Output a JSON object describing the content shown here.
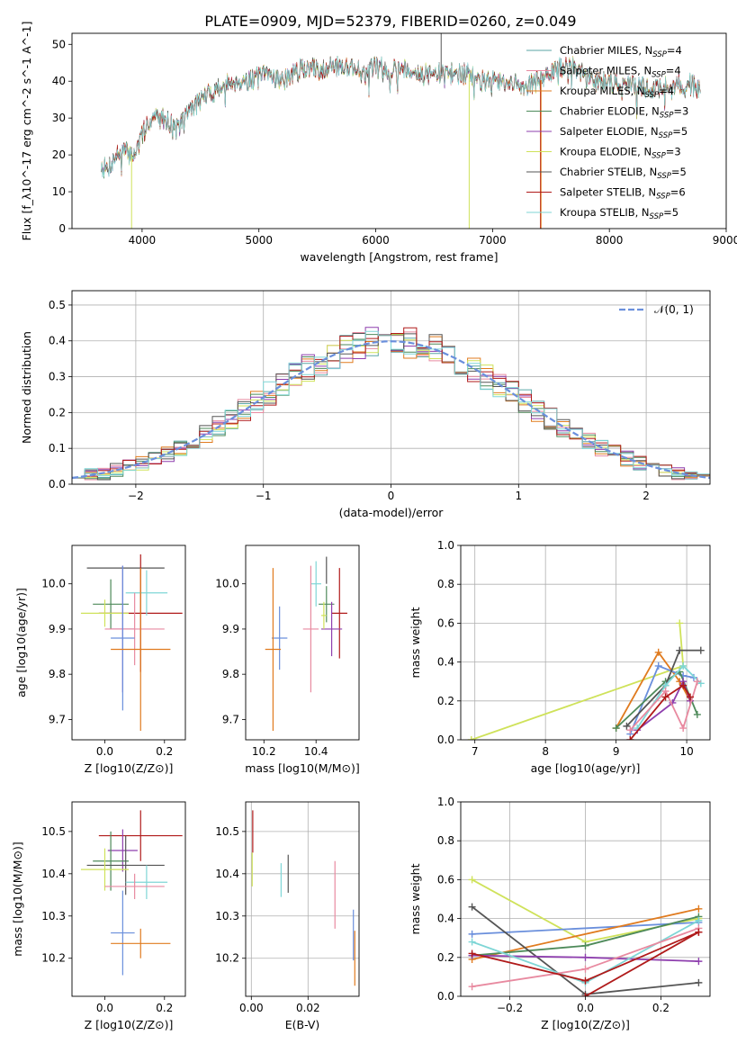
{
  "figure_title": "PLATE=0909, MJD=52379, FIBERID=0260, z=0.049",
  "colors": {
    "Chabrier MILES": "#5aa6a6",
    "Salpeter MILES": "#e88aa0",
    "Kroupa MILES": "#e07b1f",
    "Chabrier ELODIE": "#4e8a5a",
    "Salpeter ELODIE": "#8e3fae",
    "Kroupa ELODIE": "#cfe25a",
    "Chabrier STELIB": "#555555",
    "Salpeter STELIB": "#b01a1a",
    "Kroupa STELIB": "#7fd6d6",
    "blue": "#6a8fdc"
  },
  "chart_data": [
    {
      "id": "spectrum",
      "type": "line",
      "xlabel": "wavelength [Angstrom, rest frame]",
      "ylabel": "Flux [f_λ10^-17 erg cm^-2 s^-1 A^-1]",
      "xlim": [
        3400,
        9000
      ],
      "ylim": [
        0,
        53
      ],
      "xticks": [
        4000,
        5000,
        6000,
        7000,
        8000,
        9000
      ],
      "yticks": [
        0,
        10,
        20,
        30,
        40,
        50
      ],
      "legend_position": "upper-right",
      "legend": [
        {
          "model": "Chabrier MILES",
          "text": "Chabrier MILES, N",
          "sub": "SSP",
          "eq": "=4"
        },
        {
          "model": "Salpeter MILES",
          "text": "Salpeter MILES, N",
          "sub": "SSP",
          "eq": "=4"
        },
        {
          "model": "Kroupa MILES",
          "text": "Kroupa MILES, N",
          "sub": "SSP",
          "eq": "=4"
        },
        {
          "model": "Chabrier ELODIE",
          "text": "Chabrier ELODIE, N",
          "sub": "SSP",
          "eq": "=3"
        },
        {
          "model": "Salpeter ELODIE",
          "text": "Salpeter ELODIE, N",
          "sub": "SSP",
          "eq": "=5"
        },
        {
          "model": "Kroupa ELODIE",
          "text": "Kroupa ELODIE, N",
          "sub": "SSP",
          "eq": "=3"
        },
        {
          "model": "Chabrier STELIB",
          "text": "Chabrier STELIB, N",
          "sub": "SSP",
          "eq": "=5"
        },
        {
          "model": "Salpeter STELIB",
          "text": "Salpeter STELIB, N",
          "sub": "SSP",
          "eq": "=6"
        },
        {
          "model": "Kroupa STELIB",
          "text": "Kroupa STELIB, N",
          "sub": "SSP",
          "eq": "=5"
        }
      ],
      "continuum": [
        [
          3650,
          17
        ],
        [
          3700,
          16
        ],
        [
          3780,
          20
        ],
        [
          3850,
          21
        ],
        [
          3900,
          20
        ],
        [
          3950,
          21
        ],
        [
          4000,
          25
        ],
        [
          4050,
          29
        ],
        [
          4100,
          30
        ],
        [
          4200,
          30
        ],
        [
          4300,
          27
        ],
        [
          4400,
          32
        ],
        [
          4500,
          35
        ],
        [
          4600,
          37
        ],
        [
          4700,
          39
        ],
        [
          4800,
          40
        ],
        [
          4900,
          40
        ],
        [
          5000,
          41
        ],
        [
          5100,
          42
        ],
        [
          5200,
          40
        ],
        [
          5300,
          42
        ],
        [
          5400,
          44
        ],
        [
          5500,
          43
        ],
        [
          5600,
          44
        ],
        [
          5700,
          44
        ],
        [
          5800,
          44
        ],
        [
          5900,
          42
        ],
        [
          6000,
          44
        ],
        [
          6100,
          43
        ],
        [
          6200,
          44
        ],
        [
          6300,
          43
        ],
        [
          6400,
          42
        ],
        [
          6500,
          42
        ],
        [
          6600,
          42
        ],
        [
          6700,
          42
        ],
        [
          6800,
          42
        ],
        [
          6900,
          40
        ],
        [
          7000,
          40
        ],
        [
          7100,
          39
        ],
        [
          7200,
          39
        ],
        [
          7300,
          39
        ],
        [
          7400,
          40
        ],
        [
          7500,
          42
        ],
        [
          7600,
          44
        ],
        [
          7700,
          44
        ],
        [
          7800,
          41
        ],
        [
          7900,
          40
        ],
        [
          8000,
          40
        ],
        [
          8100,
          39
        ],
        [
          8200,
          39
        ],
        [
          8300,
          38
        ],
        [
          8400,
          38
        ],
        [
          8500,
          39
        ],
        [
          8600,
          39
        ],
        [
          8700,
          39
        ],
        [
          8780,
          38
        ]
      ],
      "noise_amplitude": 2.5,
      "spikes": [
        {
          "model": "Kroupa ELODIE",
          "x": 3910,
          "y": 0
        },
        {
          "model": "Kroupa ELODIE",
          "x": 6800,
          "y": 0
        },
        {
          "model": "Salpeter STELIB",
          "x": 7410,
          "y": 0
        },
        {
          "model": "Kroupa MILES",
          "x": 7415,
          "y": 0
        },
        {
          "model": "Chabrier STELIB",
          "x": 6560,
          "y": 53
        }
      ]
    },
    {
      "id": "residuals",
      "type": "step",
      "xlabel": "(data-model)/error",
      "ylabel": "Normed distribution",
      "xlim": [
        -2.5,
        2.5
      ],
      "ylim": [
        0,
        0.54
      ],
      "xticks": [
        -2,
        -1,
        0,
        1,
        2
      ],
      "yticks": [
        0.0,
        0.1,
        0.2,
        0.3,
        0.4,
        0.5
      ],
      "grid": true,
      "bin_width": 0.1,
      "legend_position": "upper-right",
      "gaussian_label": "𝒩(0, 1)",
      "gaussian": {
        "mu": 0,
        "sigma": 1
      }
    },
    {
      "id": "age-vs-Z",
      "type": "errorbar",
      "xlabel": "Z [log10(Z/Z⊙)]",
      "ylabel": "age  [log10(age/yr)]",
      "xlim": [
        -0.11,
        0.27
      ],
      "ylim": [
        9.655,
        10.085
      ],
      "xticks": [
        0.0,
        0.2
      ],
      "yticks": [
        9.7,
        9.8,
        9.9,
        10.0
      ],
      "points": [
        {
          "model": "Chabrier STELIB",
          "x": 0.07,
          "xerr": 0.13,
          "y": 10.035,
          "yerr": 0
        },
        {
          "model": "Salpeter STELIB",
          "x": 0.12,
          "xerr": 0.14,
          "y": 9.935,
          "yerr": 0.13
        },
        {
          "model": "Kroupa STELIB",
          "x": 0.14,
          "xerr": 0.07,
          "y": 9.98,
          "yerr": 0.05
        },
        {
          "model": "Chabrier ELODIE",
          "x": 0.02,
          "xerr": 0.06,
          "y": 9.955,
          "yerr": 0.055
        },
        {
          "model": "Kroupa ELODIE",
          "x": 0.0,
          "xerr": 0.08,
          "y": 9.935,
          "yerr": 0.03
        },
        {
          "model": "Salpeter ELODIE",
          "x": 0.06,
          "xerr": 0.04,
          "y": 9.9,
          "yerr": 0.14
        },
        {
          "model": "Salpeter MILES",
          "x": 0.1,
          "xerr": 0.1,
          "y": 9.9,
          "yerr": 0.08
        },
        {
          "model": "blue",
          "x": 0.06,
          "xerr": 0.04,
          "y": 9.88,
          "yerr": 0.16
        },
        {
          "model": "Kroupa MILES",
          "x": 0.12,
          "xerr": 0.1,
          "y": 9.855,
          "yerr": 0.18
        }
      ]
    },
    {
      "id": "age-vs-mass",
      "type": "errorbar",
      "xlabel": "mass [log10(M/M⊙)]",
      "ylabel": "",
      "xlim": [
        10.13,
        10.565
      ],
      "ylim": [
        9.655,
        10.085
      ],
      "xticks": [
        10.2,
        10.4
      ],
      "yticks": [
        9.7,
        9.8,
        9.9,
        10.0
      ],
      "points": [
        {
          "model": "Chabrier STELIB",
          "x": 10.44,
          "xerr": 0,
          "y": 10.03,
          "yerr": 0.03
        },
        {
          "model": "Kroupa STELIB",
          "x": 10.4,
          "xerr": 0.02,
          "y": 10.0,
          "yerr": 0.05
        },
        {
          "model": "Salpeter STELIB",
          "x": 10.49,
          "xerr": 0.03,
          "y": 9.935,
          "yerr": 0.1
        },
        {
          "model": "Chabrier ELODIE",
          "x": 10.44,
          "xerr": 0.03,
          "y": 9.955,
          "yerr": 0.04
        },
        {
          "model": "Salpeter ELODIE",
          "x": 10.46,
          "xerr": 0.04,
          "y": 9.9,
          "yerr": 0.06
        },
        {
          "model": "Kroupa ELODIE",
          "x": 10.43,
          "xerr": 0.01,
          "y": 9.93,
          "yerr": 0.03
        },
        {
          "model": "Salpeter MILES",
          "x": 10.38,
          "xerr": 0.03,
          "y": 9.9,
          "yerr": 0.14
        },
        {
          "model": "blue",
          "x": 10.26,
          "xerr": 0.03,
          "y": 9.88,
          "yerr": 0.07
        },
        {
          "model": "Kroupa MILES",
          "x": 10.235,
          "xerr": 0.03,
          "y": 9.855,
          "yerr": 0.18
        }
      ]
    },
    {
      "id": "weight-vs-age",
      "type": "line",
      "xlabel": "age  [log10(age/yr)]",
      "ylabel": "mass weight",
      "xlim": [
        6.8,
        10.33
      ],
      "ylim": [
        0,
        1.0
      ],
      "xticks": [
        7,
        8,
        9,
        10
      ],
      "yticks": [
        0.0,
        0.2,
        0.4,
        0.6,
        0.8,
        1.0
      ],
      "grid": true,
      "series": [
        {
          "model": "Kroupa ELODIE",
          "x": [
            6.95,
            9.95,
            9.9
          ],
          "y": [
            0.0,
            0.38,
            0.6
          ]
        },
        {
          "model": "Kroupa MILES",
          "x": [
            9.0,
            9.6,
            9.9,
            10.05
          ],
          "y": [
            0.06,
            0.45,
            0.3,
            0.2
          ]
        },
        {
          "model": "blue",
          "x": [
            9.2,
            9.6,
            9.95,
            10.1
          ],
          "y": [
            0.03,
            0.38,
            0.33,
            0.32
          ]
        },
        {
          "model": "Chabrier ELODIE",
          "x": [
            9.0,
            9.7,
            9.9,
            10.15
          ],
          "y": [
            0.06,
            0.3,
            0.35,
            0.13
          ]
        },
        {
          "model": "Salpeter ELODIE",
          "x": [
            9.3,
            9.8,
            9.95,
            10.05
          ],
          "y": [
            0.05,
            0.19,
            0.3,
            0.2
          ]
        },
        {
          "model": "Chabrier STELIB",
          "x": [
            9.15,
            9.7,
            9.9,
            10.2
          ],
          "y": [
            0.07,
            0.28,
            0.46,
            0.46
          ]
        },
        {
          "model": "Kroupa STELIB",
          "x": [
            9.3,
            9.7,
            9.95,
            10.2
          ],
          "y": [
            0.06,
            0.28,
            0.38,
            0.29
          ]
        },
        {
          "model": "Salpeter MILES",
          "x": [
            9.2,
            9.7,
            9.95,
            10.15
          ],
          "y": [
            0.05,
            0.25,
            0.06,
            0.3
          ]
        },
        {
          "model": "Salpeter STELIB",
          "x": [
            9.2,
            9.7,
            9.95,
            10.05
          ],
          "y": [
            0.0,
            0.22,
            0.28,
            0.22
          ]
        }
      ]
    },
    {
      "id": "mass-vs-Z",
      "type": "errorbar",
      "xlabel": "Z [log10(Z/Z⊙)]",
      "ylabel": "mass [log10(M/M⊙)]",
      "xlim": [
        -0.11,
        0.27
      ],
      "ylim": [
        10.11,
        10.57
      ],
      "xticks": [
        0.0,
        0.2
      ],
      "yticks": [
        10.2,
        10.3,
        10.4,
        10.5
      ],
      "points": [
        {
          "model": "Salpeter STELIB",
          "x": 0.12,
          "xerr": 0.14,
          "y": 10.49,
          "yerr": 0.06
        },
        {
          "model": "Salpeter ELODIE",
          "x": 0.06,
          "xerr": 0.05,
          "y": 10.455,
          "yerr": 0.05
        },
        {
          "model": "Chabrier ELODIE",
          "x": 0.02,
          "xerr": 0.06,
          "y": 10.43,
          "yerr": 0.07
        },
        {
          "model": "Chabrier STELIB",
          "x": 0.07,
          "xerr": 0.13,
          "y": 10.42,
          "yerr": 0.07
        },
        {
          "model": "Kroupa ELODIE",
          "x": 0.0,
          "xerr": 0.08,
          "y": 10.41,
          "yerr": 0.05
        },
        {
          "model": "Kroupa STELIB",
          "x": 0.14,
          "xerr": 0.07,
          "y": 10.38,
          "yerr": 0.04
        },
        {
          "model": "Salpeter MILES",
          "x": 0.1,
          "xerr": 0.1,
          "y": 10.37,
          "yerr": 0.03
        },
        {
          "model": "blue",
          "x": 0.06,
          "xerr": 0.04,
          "y": 10.26,
          "yerr": 0.1
        },
        {
          "model": "Kroupa MILES",
          "x": 0.12,
          "xerr": 0.1,
          "y": 10.235,
          "yerr": 0.035
        }
      ]
    },
    {
      "id": "mass-vs-EBV",
      "type": "errorbar",
      "xlabel": "E(B-V)",
      "ylabel": "",
      "xlim": [
        -0.002,
        0.038
      ],
      "ylim": [
        10.11,
        10.57
      ],
      "xticks": [
        0.0,
        0.02
      ],
      "yticks": [
        10.2,
        10.3,
        10.4,
        10.5
      ],
      "grid": true,
      "points": [
        {
          "model": "Salpeter STELIB",
          "x": 0.0005,
          "xerr": 0,
          "y": 10.5,
          "yerr": 0.05
        },
        {
          "model": "Kroupa ELODIE",
          "x": 0.0003,
          "xerr": 0,
          "y": 10.41,
          "yerr": 0.04
        },
        {
          "model": "Chabrier STELIB",
          "x": 0.013,
          "xerr": 0,
          "y": 10.4,
          "yerr": 0.045
        },
        {
          "model": "Kroupa STELIB",
          "x": 0.0105,
          "xerr": 0,
          "y": 10.385,
          "yerr": 0.04
        },
        {
          "model": "Salpeter MILES",
          "x": 0.0295,
          "xerr": 0,
          "y": 10.35,
          "yerr": 0.08
        },
        {
          "model": "blue",
          "x": 0.036,
          "xerr": 0,
          "y": 10.255,
          "yerr": 0.06
        },
        {
          "model": "Kroupa MILES",
          "x": 0.0365,
          "xerr": 0,
          "y": 10.2,
          "yerr": 0.065
        }
      ]
    },
    {
      "id": "weight-vs-Z",
      "type": "line",
      "xlabel": "Z [log10(Z/Z⊙)]",
      "ylabel": "mass weight",
      "xlim": [
        -0.33,
        0.33
      ],
      "ylim": [
        0,
        1.0
      ],
      "xticks": [
        -0.2,
        0.0,
        0.2
      ],
      "yticks": [
        0.0,
        0.2,
        0.4,
        0.6,
        0.8,
        1.0
      ],
      "grid": true,
      "series": [
        {
          "model": "Kroupa ELODIE",
          "x": [
            -0.3,
            0.0,
            0.3
          ],
          "y": [
            0.6,
            0.28,
            0.4
          ]
        },
        {
          "model": "blue",
          "x": [
            -0.3,
            0.3
          ],
          "y": [
            0.32,
            0.38
          ]
        },
        {
          "model": "Kroupa MILES",
          "x": [
            -0.3,
            0.3
          ],
          "y": [
            0.19,
            0.45
          ]
        },
        {
          "model": "Chabrier ELODIE",
          "x": [
            -0.3,
            0.0,
            0.3
          ],
          "y": [
            0.21,
            0.26,
            0.41
          ]
        },
        {
          "model": "Chabrier STELIB",
          "x": [
            -0.3,
            0.0,
            0.3
          ],
          "y": [
            0.46,
            0.01,
            0.07
          ]
        },
        {
          "model": "Salpeter ELODIE",
          "x": [
            -0.3,
            0.0,
            0.3
          ],
          "y": [
            0.21,
            0.2,
            0.18
          ]
        },
        {
          "model": "Kroupa STELIB",
          "x": [
            -0.3,
            0.0,
            0.3
          ],
          "y": [
            0.28,
            0.07,
            0.39
          ]
        },
        {
          "model": "Salpeter MILES",
          "x": [
            -0.3,
            0.0,
            0.3
          ],
          "y": [
            0.05,
            0.14,
            0.35
          ]
        },
        {
          "model": "Salpeter STELIB",
          "x": [
            -0.3,
            0.0,
            0.3
          ],
          "y": [
            0.22,
            0.08,
            0.33
          ]
        },
        {
          "model": "Salpeter STELIB",
          "x": [
            0.0,
            0.3
          ],
          "y": [
            0.0,
            0.33
          ]
        }
      ]
    }
  ]
}
